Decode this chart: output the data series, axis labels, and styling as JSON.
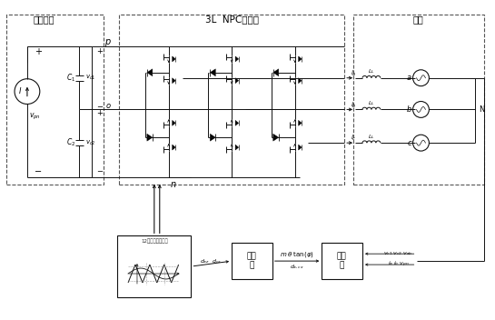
{
  "title_dc": "直流电源",
  "title_inverter": "3L  NPC逆变器",
  "title_load": "负载",
  "bg": "white",
  "lc": "#111111",
  "dc_lc": "#555555"
}
